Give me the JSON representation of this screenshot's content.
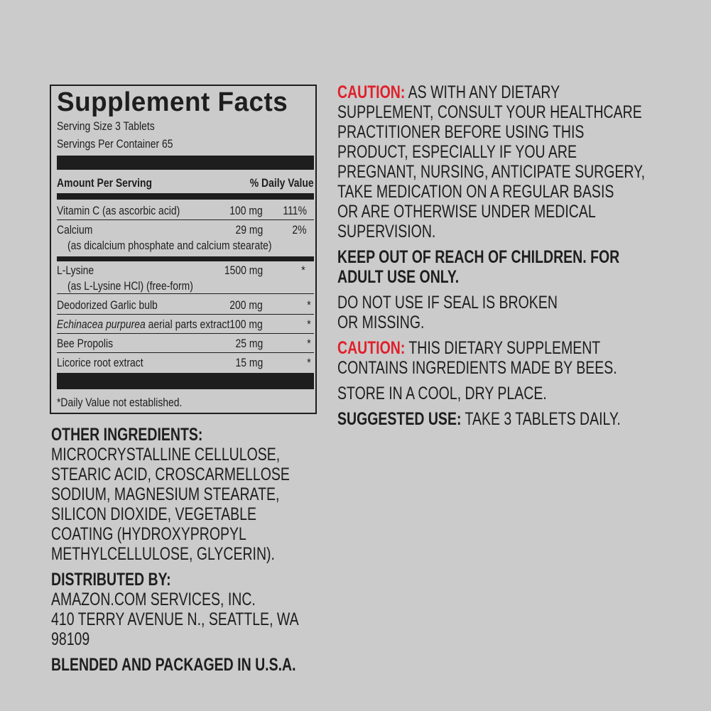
{
  "facts": {
    "title": "Supplement Facts",
    "serving_size": "Serving Size 3 Tablets",
    "servings_per_container": "Servings Per Container 65",
    "header_amount": "Amount Per Serving",
    "header_dv": "% Daily Value",
    "rows": [
      {
        "name": "Vitamin C (as ascorbic acid)",
        "amount": "100 mg",
        "dv": "111%"
      },
      {
        "name": "Calcium",
        "sub": "(as dicalcium phosphate and calcium stearate)",
        "amount": "29 mg",
        "dv": "2%"
      },
      {
        "name": "L-Lysine",
        "sub": "(as L-Lysine HCl) (free-form)",
        "amount": "1500 mg",
        "dv": "*"
      },
      {
        "name": "Deodorized Garlic bulb",
        "amount": "200 mg",
        "dv": "*"
      },
      {
        "name_italic": "Echinacea purpurea",
        "name": " aerial parts extract",
        "amount": "100 mg",
        "dv": "*"
      },
      {
        "name": "Bee Propolis",
        "amount": "25 mg",
        "dv": "*"
      },
      {
        "name": "Licorice root extract",
        "amount": "15 mg",
        "dv": "*"
      }
    ],
    "footnote": "*Daily Value not established."
  },
  "left_text": [
    {
      "lead": "OTHER INGREDIENTS:",
      "lead_style": "bold",
      "lines": [
        "MICROCRYSTALLINE CELLULOSE,",
        "STEARIC ACID, CROSCARMELLOSE",
        "SODIUM, MAGNESIUM STEARATE,",
        "SILICON DIOXIDE, VEGETABLE",
        "COATING (HYDROXYPROPYL",
        "METHYLCELLULOSE, GLYCERIN)."
      ],
      "lead_own_line": true
    },
    {
      "lead": "DISTRIBUTED BY:",
      "lead_style": "bold",
      "lines": [
        "AMAZON.COM SERVICES, INC.",
        "410 TERRY AVENUE N., SEATTLE, WA",
        "98109"
      ],
      "lead_own_line": true
    },
    {
      "lead": "BLENDED AND PACKAGED IN U.S.A.",
      "lead_style": "bold",
      "lines": [],
      "lead_own_line": true
    }
  ],
  "right_text": [
    {
      "lead": "CAUTION:",
      "lead_style": "red",
      "lines": [
        " AS WITH ANY DIETARY",
        "SUPPLEMENT, CONSULT YOUR HEALTHCARE",
        "PRACTITIONER BEFORE USING THIS",
        "PRODUCT, ESPECIALLY IF YOU ARE",
        "PREGNANT, NURSING, ANTICIPATE SURGERY,",
        "TAKE MEDICATION ON A REGULAR BASIS",
        "OR ARE OTHERWISE UNDER MEDICAL",
        "SUPERVISION."
      ]
    },
    {
      "lead": "KEEP OUT OF REACH OF CHILDREN. FOR",
      "lead_style": "bold",
      "lines": [],
      "bold_lines": [
        "ADULT USE ONLY."
      ],
      "lead_own_line": true
    },
    {
      "lines": [
        "DO NOT USE IF SEAL IS BROKEN",
        "OR MISSING."
      ]
    },
    {
      "lead": "CAUTION:",
      "lead_style": "red",
      "lines": [
        " THIS DIETARY SUPPLEMENT",
        "CONTAINS INGREDIENTS MADE BY BEES."
      ]
    },
    {
      "lines": [
        "STORE IN A COOL, DRY PLACE."
      ]
    },
    {
      "lead": "SUGGESTED USE:",
      "lead_style": "bold",
      "lines": [
        " TAKE 3 TABLETS DAILY."
      ]
    }
  ],
  "colors": {
    "background": "#cbcbcb",
    "text": "#1e1e1e",
    "caution_red": "#e0202a"
  }
}
